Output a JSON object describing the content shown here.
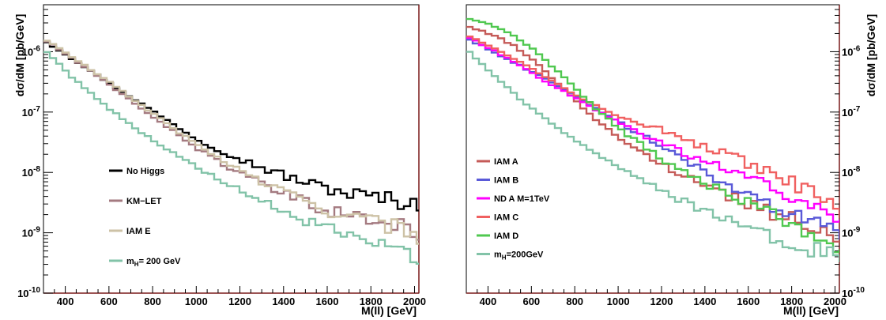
{
  "chart_data": [
    {
      "type": "line",
      "panel": "left",
      "title": "",
      "xlabel": "M(ll) [GeV]",
      "ylabel": "dσ/dM [pb/GeV]",
      "xlim": [
        300,
        2020
      ],
      "ylim": [
        1e-10,
        6e-06
      ],
      "yscale": "log",
      "grid": false,
      "legend_position": "center-left",
      "x_ticks": [
        "400",
        "600",
        "800",
        "1000",
        "1200",
        "1400",
        "1600",
        "1800",
        "2000"
      ],
      "y_ticks": [
        {
          "base": "10",
          "exp": "-6",
          "value": 1e-06
        },
        {
          "base": "10",
          "exp": "-7",
          "value": 1e-07
        },
        {
          "base": "10",
          "exp": "-8",
          "value": 1e-08
        },
        {
          "base": "10",
          "exp": "-9",
          "value": 1e-09
        },
        {
          "base": "10",
          "exp": "-10",
          "value": 1e-10
        }
      ],
      "x": [
        300,
        400,
        500,
        600,
        700,
        800,
        900,
        1000,
        1100,
        1200,
        1300,
        1400,
        1500,
        1600,
        1700,
        1800,
        1900,
        2000
      ],
      "series": [
        {
          "name": "No Higgs",
          "label": "No Higgs",
          "color": "#000000",
          "y": [
            1.45e-06,
            8.5e-07,
            4.9e-07,
            2.8e-07,
            1.65e-07,
            9.6e-08,
            5.6e-08,
            3.3e-08,
            2.3e-08,
            1.6e-08,
            1.15e-08,
            8.6e-09,
            6.6e-09,
            5.3e-09,
            4.4e-09,
            3.9e-09,
            3.4e-09,
            3.2e-09
          ]
        },
        {
          "name": "KM-LET",
          "label": "KM−LET",
          "color": "#a47a80",
          "y": [
            1.5e-06,
            8.6e-07,
            4.8e-07,
            2.6e-07,
            1.45e-07,
            7.8e-08,
            4.3e-08,
            2.4e-08,
            1.45e-08,
            9e-09,
            6e-09,
            4.2e-09,
            3e-09,
            2.3e-09,
            1.9e-09,
            1.6e-09,
            1.3e-09,
            1.05e-09
          ]
        },
        {
          "name": "IAM E",
          "label": "IAM E",
          "color": "#cdc2a6",
          "y": [
            1.55e-06,
            9e-07,
            5.1e-07,
            2.9e-07,
            1.6e-07,
            8.8e-08,
            4.8e-08,
            2.7e-08,
            1.65e-08,
            1e-08,
            6.5e-09,
            4.5e-09,
            3.2e-09,
            2.3e-09,
            1.8e-09,
            1.5e-09,
            1.2e-09,
            9e-10
          ]
        },
        {
          "name": "mH= 200 GeV",
          "label": "m",
          "label_sub": "H",
          "label_rest": "= 200 GeV",
          "color": "#82c3a8",
          "y": [
            1e-06,
            4.3e-07,
            2.1e-07,
            1.05e-07,
            5.6e-08,
            3.2e-08,
            1.9e-08,
            1.15e-08,
            7.2e-09,
            4.6e-09,
            3.1e-09,
            2.1e-09,
            1.5e-09,
            1.1e-09,
            8e-10,
            6.2e-10,
            5e-10,
            4.2e-10
          ]
        }
      ]
    },
    {
      "type": "line",
      "panel": "right",
      "title": "",
      "xlabel": "M(ll) [GeV]",
      "ylabel": "dσ/dM [pb/GeV]",
      "xlim": [
        300,
        2020
      ],
      "ylim": [
        1e-10,
        6e-06
      ],
      "yscale": "log",
      "grid": false,
      "legend_position": "lower-left",
      "x_ticks": [
        "400",
        "600",
        "800",
        "1000",
        "1200",
        "1400",
        "1600",
        "1800",
        "2000"
      ],
      "y_ticks": [
        {
          "base": "10",
          "exp": "-6",
          "value": 1e-06
        },
        {
          "base": "10",
          "exp": "-7",
          "value": 1e-07
        },
        {
          "base": "10",
          "exp": "-8",
          "value": 1e-08
        },
        {
          "base": "10",
          "exp": "-9",
          "value": 1e-09
        },
        {
          "base": "10",
          "exp": "-10",
          "value": 1e-10
        }
      ],
      "x": [
        300,
        400,
        500,
        600,
        700,
        800,
        900,
        1000,
        1100,
        1200,
        1300,
        1400,
        1500,
        1600,
        1700,
        1800,
        1900,
        2000
      ],
      "series": [
        {
          "name": "IAM A",
          "label": "IAM A",
          "color": "#c55b58",
          "y": [
            2.6e-06,
            1.95e-06,
            1.3e-06,
            7e-07,
            3.2e-07,
            1.4e-07,
            6.5e-08,
            3.6e-08,
            2e-08,
            1.3e-08,
            8.5e-09,
            5.8e-09,
            4e-09,
            2.9e-09,
            2.1e-09,
            1.6e-09,
            1.2e-09,
            9e-10
          ]
        },
        {
          "name": "IAM B",
          "label": "IAM B",
          "color": "#5a5ad8",
          "y": [
            1.6e-06,
            1.05e-06,
            6.8e-07,
            4.4e-07,
            2.8e-07,
            1.75e-07,
            1.05e-07,
            6.5e-08,
            4e-08,
            2.4e-08,
            1.45e-08,
            9e-09,
            5.8e-09,
            3.8e-09,
            2.5e-09,
            1.8e-09,
            1.3e-09,
            1e-09
          ]
        },
        {
          "name": "ND A M=1TeV",
          "label": "ND A M=1TeV",
          "color": "#ff00ff",
          "y": [
            1.7e-06,
            1.1e-06,
            6.9e-07,
            4.2e-07,
            2.6e-07,
            1.6e-07,
            1e-07,
            6.4e-08,
            4.2e-08,
            2.9e-08,
            2.1e-08,
            1.5e-08,
            1.1e-08,
            7.5e-09,
            5e-09,
            3.5e-09,
            2.6e-09,
            2e-09
          ]
        },
        {
          "name": "IAM C",
          "label": "IAM C",
          "color": "#f06060",
          "y": [
            1.8e-06,
            1.2e-06,
            8e-07,
            4.9e-07,
            3e-07,
            1.85e-07,
            1.2e-07,
            8.5e-08,
            6.3e-08,
            4.8e-08,
            3.5e-08,
            2.5e-08,
            1.8e-08,
            1.25e-08,
            8.8e-09,
            6.3e-09,
            4e-09,
            2.3e-09
          ]
        },
        {
          "name": "IAM D",
          "label": "IAM D",
          "color": "#50c850",
          "y": [
            3.5e-06,
            2.8e-06,
            1.9e-06,
            1.05e-06,
            5e-07,
            2.2e-07,
            1e-07,
            5e-08,
            2.7e-08,
            1.6e-08,
            1e-08,
            6.4e-09,
            4.2e-09,
            2.8e-09,
            1.9e-09,
            1.3e-09,
            9e-10,
            6.5e-10
          ]
        },
        {
          "name": "mH=200GeV",
          "label": "m",
          "label_sub": "H",
          "label_rest": "=200GeV",
          "color": "#82c3a8",
          "y": [
            1e-06,
            4.3e-07,
            2.1e-07,
            1.05e-07,
            5.6e-08,
            3.2e-08,
            1.9e-08,
            1.15e-08,
            7.2e-09,
            4.6e-09,
            3.1e-09,
            2.1e-09,
            1.5e-09,
            1.1e-09,
            8e-10,
            6.2e-10,
            5e-10,
            4.2e-10
          ]
        }
      ]
    }
  ]
}
